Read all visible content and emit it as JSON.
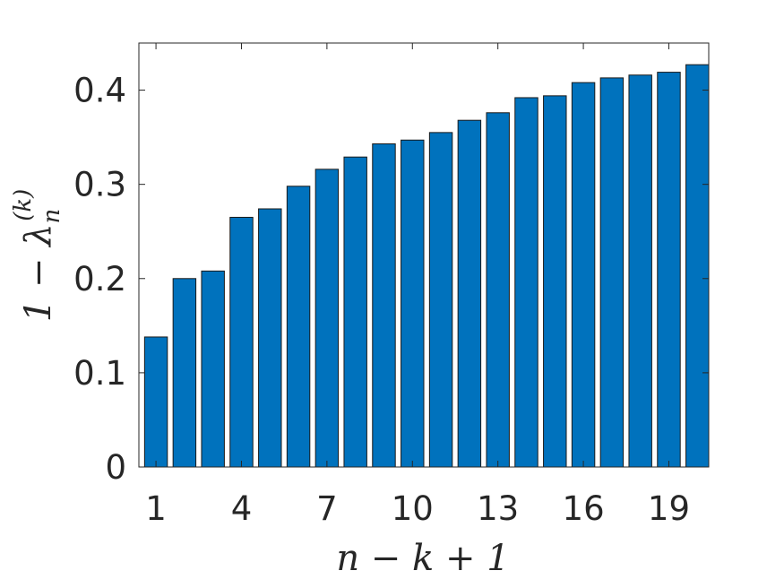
{
  "chart_data": {
    "type": "bar",
    "title": "",
    "xlabel": "n − k + 1",
    "ylabel": "1 − λ",
    "ylabel_sub": "n",
    "ylabel_sup": "(k)",
    "categories": [
      1,
      2,
      3,
      4,
      5,
      6,
      7,
      8,
      9,
      10,
      11,
      12,
      13,
      14,
      15,
      16,
      17,
      18,
      19,
      20
    ],
    "values": [
      0.138,
      0.2,
      0.208,
      0.265,
      0.274,
      0.298,
      0.316,
      0.329,
      0.343,
      0.347,
      0.355,
      0.368,
      0.376,
      0.392,
      0.394,
      0.408,
      0.413,
      0.416,
      0.419,
      0.427
    ],
    "xticks": [
      1,
      4,
      7,
      10,
      13,
      16,
      19
    ],
    "yticks": [
      "0",
      "0.1",
      "0.2",
      "0.3",
      "0.4"
    ],
    "ytick_values": [
      0,
      0.1,
      0.2,
      0.3,
      0.4
    ],
    "xlim": [
      0.4,
      20.4
    ],
    "ylim": [
      0,
      0.45
    ],
    "bar_color": "#0072BD",
    "grid": false,
    "legend": "none"
  }
}
